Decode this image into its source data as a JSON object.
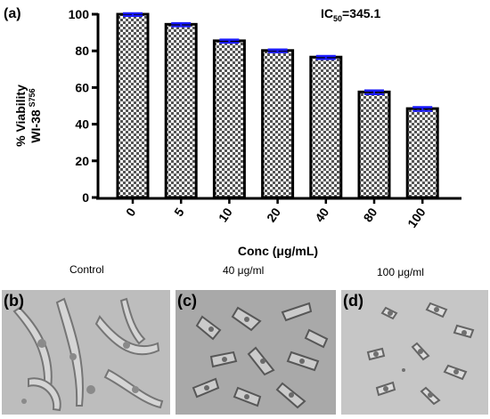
{
  "panel_a_label": "(a)",
  "annotation_prefix": "IC",
  "annotation_sub": "50",
  "annotation_suffix": "=345.1",
  "chart_data": {
    "type": "bar",
    "categories": [
      "0",
      "5",
      "10",
      "20",
      "40",
      "80",
      "100"
    ],
    "values": [
      100,
      94.5,
      85.5,
      80.2,
      76.6,
      57.6,
      48.5
    ],
    "errors": [
      0.5,
      0.6,
      0.6,
      0.5,
      0.6,
      0.8,
      0.8
    ],
    "xlabel": "Conc (μg/mL)",
    "ylabel_line1": "% Viability",
    "ylabel_line2": "WI-38",
    "ylabel_superscript": "S756",
    "ylim": [
      0,
      100
    ],
    "yticks": [
      "0",
      "20",
      "40",
      "60",
      "80",
      "100"
    ],
    "bar_pattern": "checkerboard",
    "errorbar_color": "#1a1aff",
    "grid": false
  },
  "images": {
    "captions": [
      "Control",
      "40 μg/ml",
      "100 μg/ml"
    ],
    "panel_labels": [
      "(b)",
      "(c)",
      "(d)"
    ]
  }
}
